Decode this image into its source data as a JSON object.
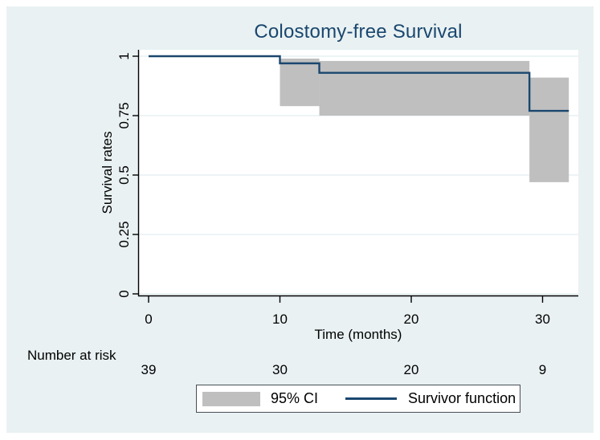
{
  "figure": {
    "canvas_color": "#e9f1f2",
    "plot_background": "#ffffff",
    "gridline_color": "#e2edef",
    "axis_color": "#000000",
    "title_color": "#1a476f",
    "text_color": "#000000",
    "legend_border_color": "#474f56"
  },
  "chart_data": {
    "type": "line",
    "subtype": "kaplan-meier-step-with-ci-band",
    "title": "Colostomy-free Survival",
    "xlabel": "Time (months)",
    "ylabel": "Survival rates",
    "xlim": [
      0,
      32.7
    ],
    "ylim": [
      0,
      1
    ],
    "xticks": [
      0,
      10,
      20,
      30
    ],
    "xtick_labels": [
      "0",
      "10",
      "20",
      "30"
    ],
    "yticks": [
      0,
      0.25,
      0.5,
      0.75,
      1
    ],
    "ytick_labels": [
      "0",
      "0.25",
      "0.5",
      "0.75",
      "1"
    ],
    "grid": "horizontal",
    "series": [
      {
        "name": "Survivor function",
        "color": "#1a476f",
        "step": true,
        "x": [
          0,
          10,
          13,
          29,
          32
        ],
        "y": [
          1.0,
          0.97,
          0.93,
          0.77,
          0.77
        ]
      }
    ],
    "ci_band": {
      "name": "95% CI",
      "color": "#bfbfbf",
      "segments": [
        {
          "x0": 10,
          "x1": 13,
          "upper": 0.99,
          "lower": 0.79
        },
        {
          "x0": 13,
          "x1": 29,
          "upper": 0.98,
          "lower": 0.75
        },
        {
          "x0": 29,
          "x1": 32,
          "upper": 0.91,
          "lower": 0.47
        }
      ]
    },
    "legend": {
      "position": "bottom-center",
      "entries": [
        "95% CI",
        "Survivor function"
      ]
    },
    "number_at_risk": {
      "label": "Number at risk",
      "times": [
        0,
        10,
        20,
        30
      ],
      "counts": [
        39,
        30,
        20,
        9
      ]
    }
  }
}
